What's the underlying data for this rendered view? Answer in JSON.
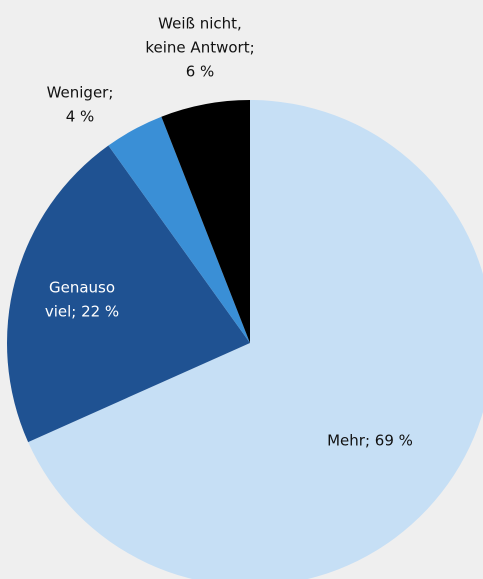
{
  "chart_data": {
    "type": "pie",
    "values": [
      69,
      22,
      4,
      6
    ],
    "value_labels": [
      [
        "Mehr; 69 %"
      ],
      [
        "Genauso",
        "viel; 22 %"
      ],
      [
        "Weniger;",
        "4 %"
      ],
      [
        "Weiß nicht,",
        "keine Antwort;",
        "6 %"
      ]
    ],
    "colors": [
      "#c6dff5",
      "#1f5292",
      "#3a8fd6",
      "#000000"
    ],
    "label_colors": [
      "#111111",
      "#ffffff",
      "#111111",
      "#111111"
    ]
  }
}
